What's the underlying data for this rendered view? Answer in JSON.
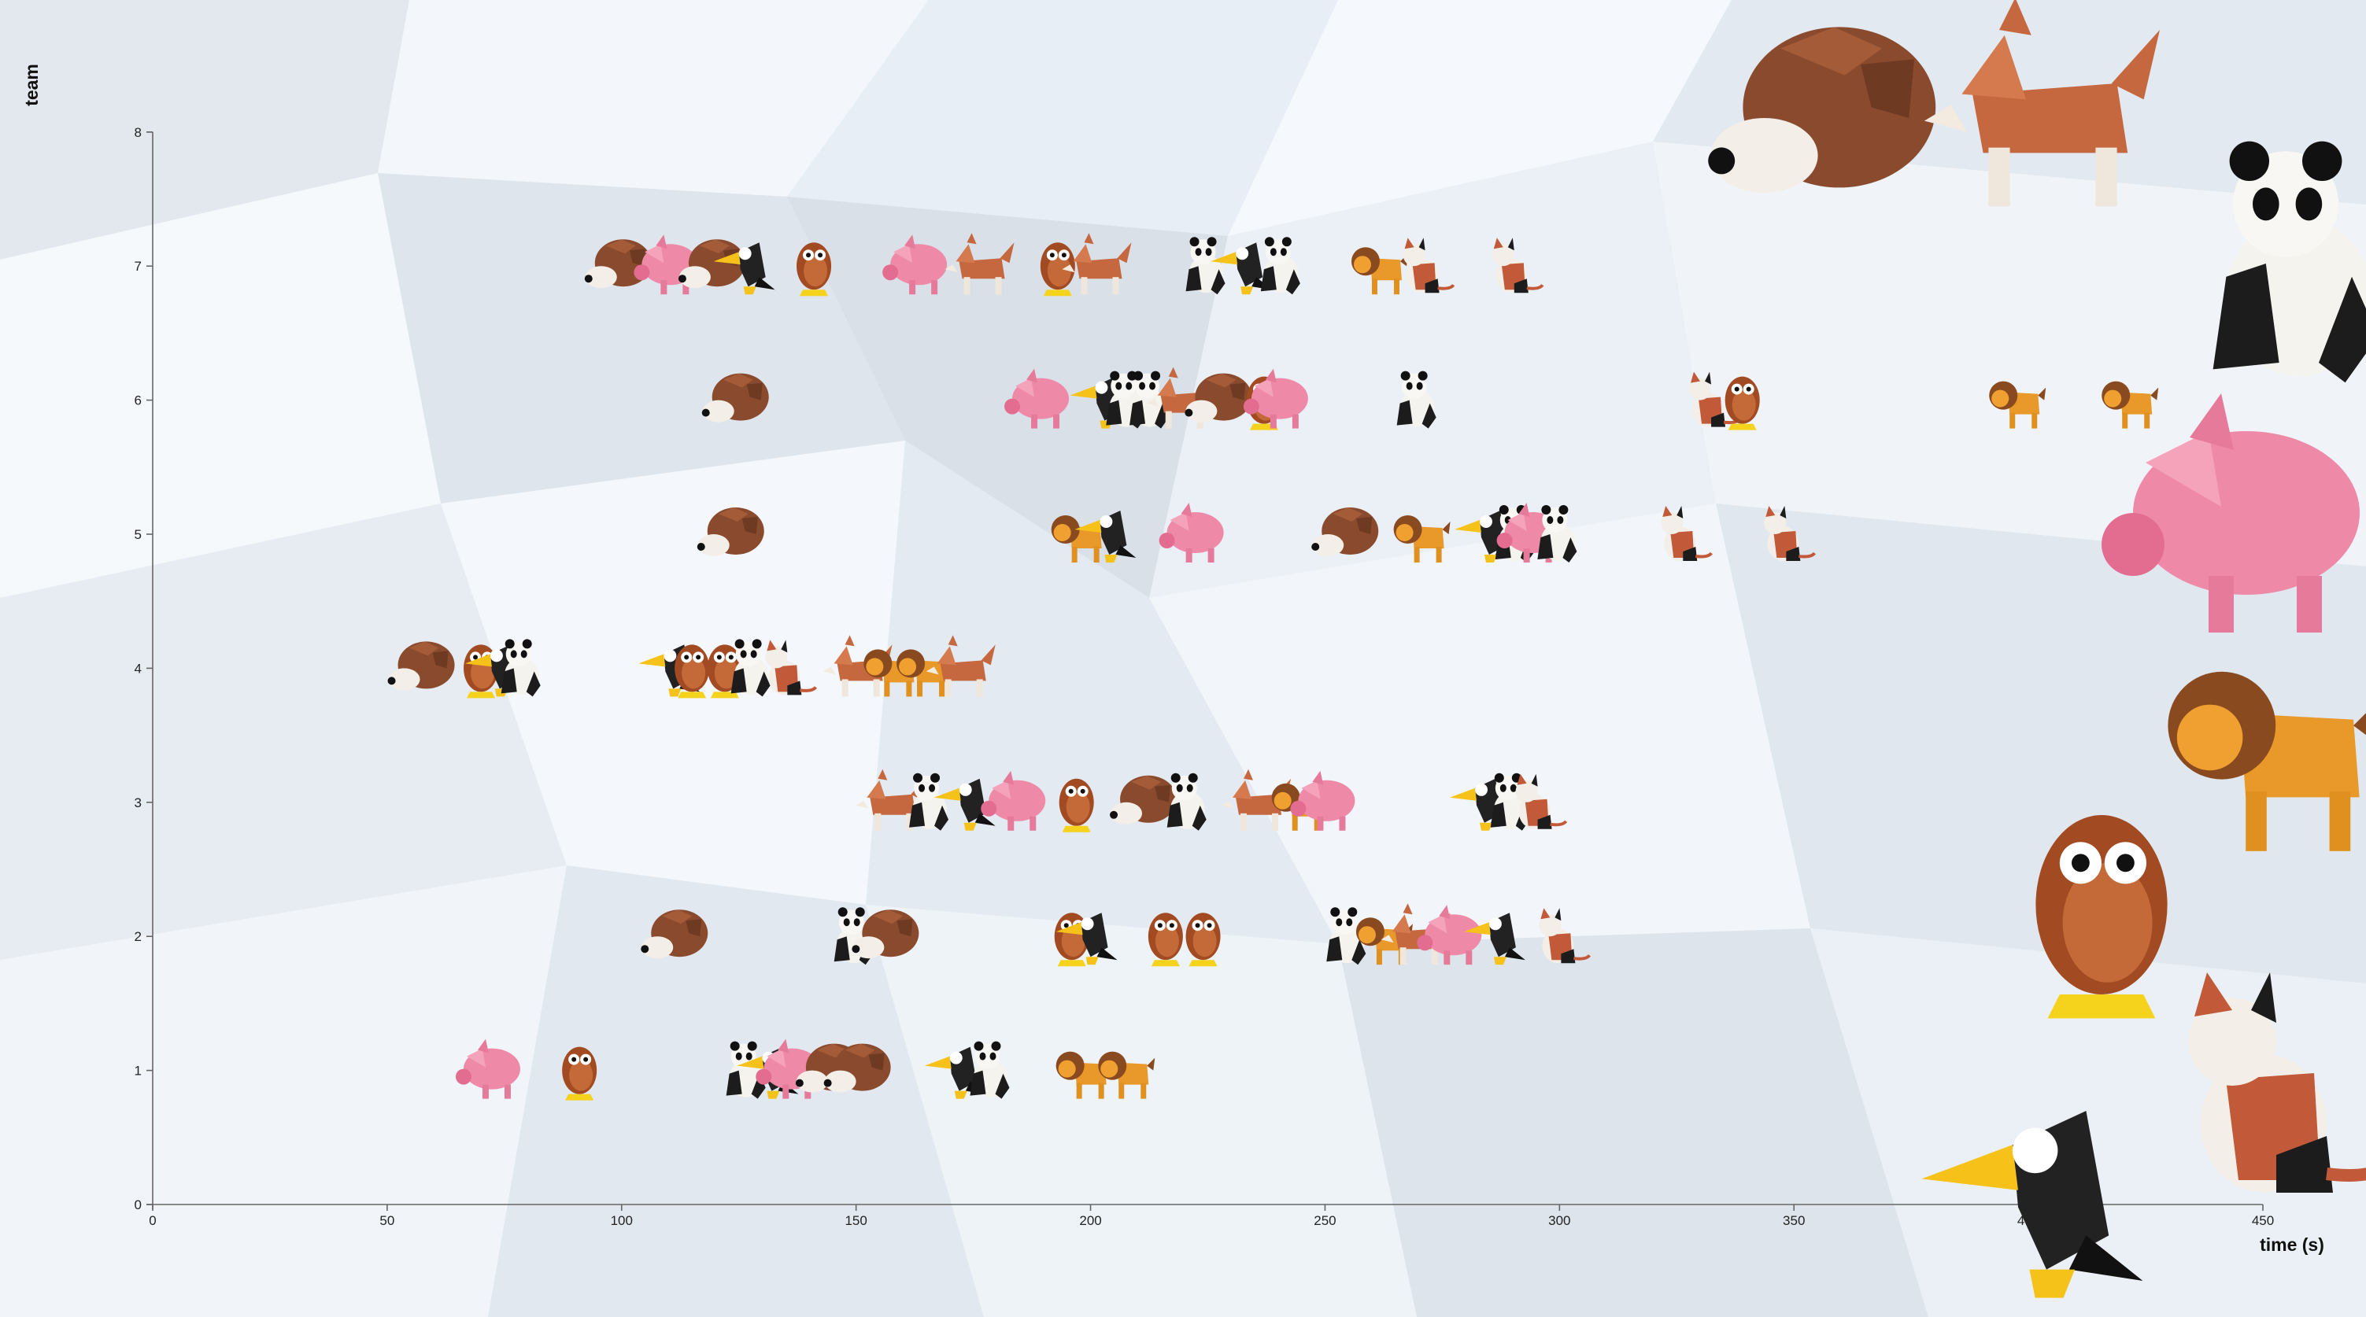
{
  "chart_data": {
    "type": "scatter",
    "title": "",
    "xlabel": "time (s)",
    "ylabel": "team",
    "xlim": [
      0,
      450
    ],
    "ylim": [
      0,
      8
    ],
    "x_ticks": [
      "0",
      "50",
      "100",
      "150",
      "200",
      "250",
      "300",
      "350",
      "400",
      "450"
    ],
    "y_ticks": [
      "0",
      "1",
      "2",
      "3",
      "4",
      "5",
      "6",
      "7",
      "8"
    ],
    "grid": false,
    "marker_style": "origami animal icons",
    "animal_colors": {
      "hedgehog": "#8a4a2e",
      "pig": "#ee8aa8",
      "toucan": "#222222",
      "owl": "#a24a22",
      "fox": "#c5673f",
      "panda": "#202020",
      "lion": "#e9982a",
      "cat": "#c25a3a"
    },
    "series": [
      {
        "team": 1,
        "points": [
          {
            "x": 72,
            "animal": "pig"
          },
          {
            "x": 91,
            "animal": "owl"
          },
          {
            "x": 126,
            "animal": "panda"
          },
          {
            "x": 132,
            "animal": "toucan"
          },
          {
            "x": 136,
            "animal": "pig"
          },
          {
            "x": 145,
            "animal": "hedgehog"
          },
          {
            "x": 151,
            "animal": "hedgehog"
          },
          {
            "x": 172,
            "animal": "toucan"
          },
          {
            "x": 178,
            "animal": "panda"
          },
          {
            "x": 198,
            "animal": "lion"
          },
          {
            "x": 207,
            "animal": "lion"
          }
        ]
      },
      {
        "team": 2,
        "points": [
          {
            "x": 112,
            "animal": "hedgehog"
          },
          {
            "x": 149,
            "animal": "panda"
          },
          {
            "x": 157,
            "animal": "hedgehog"
          },
          {
            "x": 196,
            "animal": "owl"
          },
          {
            "x": 200,
            "animal": "toucan"
          },
          {
            "x": 216,
            "animal": "owl"
          },
          {
            "x": 224,
            "animal": "owl"
          },
          {
            "x": 254,
            "animal": "panda"
          },
          {
            "x": 262,
            "animal": "lion"
          },
          {
            "x": 270,
            "animal": "fox"
          },
          {
            "x": 277,
            "animal": "pig"
          },
          {
            "x": 287,
            "animal": "toucan"
          },
          {
            "x": 299,
            "animal": "cat"
          }
        ]
      },
      {
        "team": 3,
        "points": [
          {
            "x": 158,
            "animal": "fox"
          },
          {
            "x": 165,
            "animal": "panda"
          },
          {
            "x": 174,
            "animal": "toucan"
          },
          {
            "x": 184,
            "animal": "pig"
          },
          {
            "x": 197,
            "animal": "owl"
          },
          {
            "x": 212,
            "animal": "hedgehog"
          },
          {
            "x": 220,
            "animal": "panda"
          },
          {
            "x": 236,
            "animal": "fox"
          },
          {
            "x": 244,
            "animal": "lion"
          },
          {
            "x": 250,
            "animal": "pig"
          },
          {
            "x": 284,
            "animal": "toucan"
          },
          {
            "x": 289,
            "animal": "panda"
          },
          {
            "x": 294,
            "animal": "cat"
          }
        ]
      },
      {
        "team": 4,
        "points": [
          {
            "x": 58,
            "animal": "hedgehog"
          },
          {
            "x": 70,
            "animal": "owl"
          },
          {
            "x": 74,
            "animal": "toucan"
          },
          {
            "x": 78,
            "animal": "panda"
          },
          {
            "x": 111,
            "animal": "toucan"
          },
          {
            "x": 115,
            "animal": "owl"
          },
          {
            "x": 122,
            "animal": "owl"
          },
          {
            "x": 127,
            "animal": "panda"
          },
          {
            "x": 134,
            "animal": "cat"
          },
          {
            "x": 151,
            "animal": "fox"
          },
          {
            "x": 157,
            "animal": "lion"
          },
          {
            "x": 164,
            "animal": "lion"
          },
          {
            "x": 173,
            "animal": "fox"
          }
        ]
      },
      {
        "team": 5,
        "points": [
          {
            "x": 124,
            "animal": "hedgehog"
          },
          {
            "x": 197,
            "animal": "lion"
          },
          {
            "x": 204,
            "animal": "toucan"
          },
          {
            "x": 222,
            "animal": "pig"
          },
          {
            "x": 255,
            "animal": "hedgehog"
          },
          {
            "x": 270,
            "animal": "lion"
          },
          {
            "x": 285,
            "animal": "toucan"
          },
          {
            "x": 290,
            "animal": "panda"
          },
          {
            "x": 294,
            "animal": "pig"
          },
          {
            "x": 299,
            "animal": "panda"
          },
          {
            "x": 325,
            "animal": "cat"
          },
          {
            "x": 347,
            "animal": "cat"
          }
        ]
      },
      {
        "team": 6,
        "points": [
          {
            "x": 125,
            "animal": "hedgehog"
          },
          {
            "x": 189,
            "animal": "pig"
          },
          {
            "x": 203,
            "animal": "toucan"
          },
          {
            "x": 207,
            "animal": "panda"
          },
          {
            "x": 212,
            "animal": "panda"
          },
          {
            "x": 220,
            "animal": "fox"
          },
          {
            "x": 228,
            "animal": "hedgehog"
          },
          {
            "x": 237,
            "animal": "owl"
          },
          {
            "x": 240,
            "animal": "pig"
          },
          {
            "x": 269,
            "animal": "panda"
          },
          {
            "x": 331,
            "animal": "cat"
          },
          {
            "x": 339,
            "animal": "owl"
          },
          {
            "x": 397,
            "animal": "lion"
          },
          {
            "x": 421,
            "animal": "lion"
          }
        ]
      },
      {
        "team": 7,
        "points": [
          {
            "x": 100,
            "animal": "hedgehog"
          },
          {
            "x": 110,
            "animal": "pig"
          },
          {
            "x": 120,
            "animal": "hedgehog"
          },
          {
            "x": 127,
            "animal": "toucan"
          },
          {
            "x": 141,
            "animal": "owl"
          },
          {
            "x": 163,
            "animal": "pig"
          },
          {
            "x": 177,
            "animal": "fox"
          },
          {
            "x": 193,
            "animal": "owl"
          },
          {
            "x": 202,
            "animal": "fox"
          },
          {
            "x": 224,
            "animal": "panda"
          },
          {
            "x": 233,
            "animal": "toucan"
          },
          {
            "x": 240,
            "animal": "panda"
          },
          {
            "x": 261,
            "animal": "lion"
          },
          {
            "x": 270,
            "animal": "cat"
          },
          {
            "x": 289,
            "animal": "cat"
          }
        ]
      }
    ]
  },
  "gallery": [
    {
      "animal": "hedgehog",
      "label": "hedgehog"
    },
    {
      "animal": "fox",
      "label": "fox"
    },
    {
      "animal": "panda",
      "label": "panda"
    },
    {
      "animal": "pig",
      "label": "pig"
    },
    {
      "animal": "lion",
      "label": "lion"
    },
    {
      "animal": "owl",
      "label": "owl"
    },
    {
      "animal": "cat",
      "label": "cat"
    },
    {
      "animal": "toucan",
      "label": "toucan"
    }
  ]
}
